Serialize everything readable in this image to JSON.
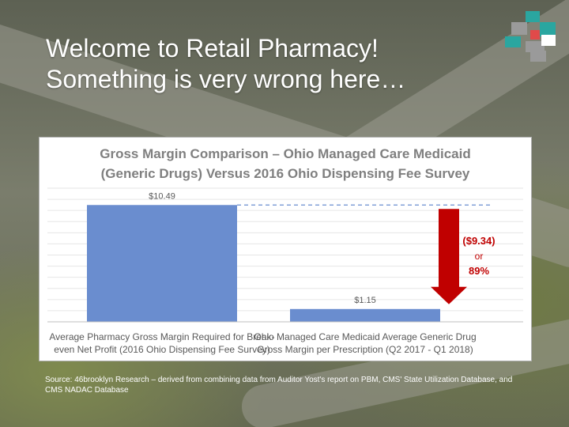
{
  "slide": {
    "title_line1": "Welcome to Retail Pharmacy!",
    "title_line2": "Something is very wrong here…",
    "source": "Source: 46brooklyn Research – derived from combining data from Auditor Yost's report on PBM, CMS' State Utilization Database, and CMS NADAC Database"
  },
  "logo": {
    "colors": [
      "#2aa6a0",
      "#e04a4a",
      "#9a9a9a",
      "#ffffff"
    ]
  },
  "chart_data": {
    "type": "bar",
    "title_lines": [
      "Gross Margin Comparison – Ohio Managed Care Medicaid",
      "(Generic Drugs) Versus 2016 Ohio Dispensing Fee Survey"
    ],
    "categories": [
      [
        "Average Pharmacy Gross Margin Required for Break-",
        "even Net Profit (2016 Ohio Dispensing Fee Survey)"
      ],
      [
        "Ohio Managed Care Medicaid Average Generic Drug",
        "Gross Margin per Prescription (Q2 2017 - Q1 2018)"
      ]
    ],
    "values": [
      10.49,
      1.15
    ],
    "data_labels": [
      "$10.49",
      "$1.15"
    ],
    "ylim": [
      0,
      12
    ],
    "grid": true,
    "bar_color": "#6a8dcf",
    "annotation": {
      "lines": [
        "($9.34)",
        "or",
        "89%"
      ],
      "difference": -9.34,
      "percent": 89,
      "arrow_color": "#c00000",
      "text_color": "#c00000"
    }
  }
}
